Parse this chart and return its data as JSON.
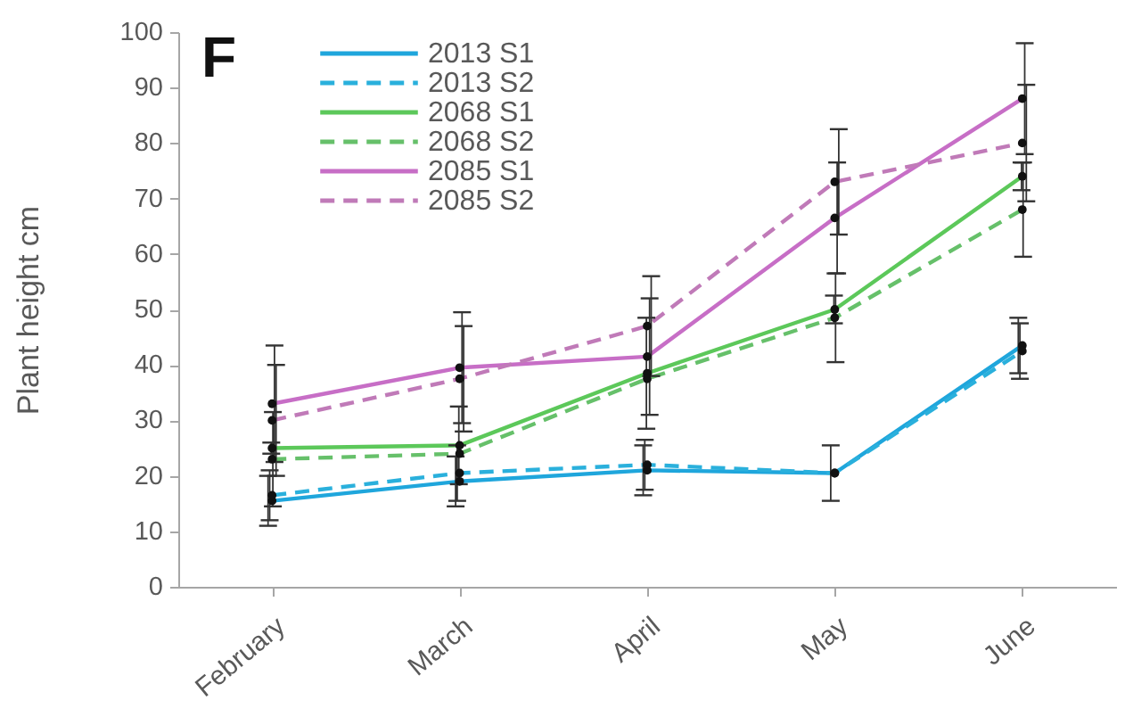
{
  "chart_data": {
    "type": "line",
    "title": "F",
    "ylabel": "Plant height cm",
    "categories": [
      "February",
      "March",
      "April",
      "May",
      "June"
    ],
    "ylim": [
      0,
      100
    ],
    "yticks": [
      0,
      10,
      20,
      30,
      40,
      50,
      60,
      70,
      80,
      90,
      100
    ],
    "legend": "top left",
    "marker": "circle",
    "series": [
      {
        "name": "2013 S1",
        "color": "#1fa6dc",
        "line_style": "solid",
        "values": [
          15.5,
          19,
          21,
          20.5,
          43.5
        ],
        "errors": [
          4.5,
          4.5,
          4.5,
          5,
          5
        ]
      },
      {
        "name": "2013 S2",
        "color": "#2ab0dc",
        "line_style": "dashed",
        "values": [
          16.5,
          20.5,
          22,
          20.5,
          42.5
        ],
        "errors": [
          4.5,
          5,
          4.5,
          null,
          5
        ]
      },
      {
        "name": "2068 S1",
        "color": "#5cc85a",
        "line_style": "solid",
        "values": [
          25,
          25.5,
          38.5,
          50,
          74
        ],
        "errors": [
          1,
          7,
          10,
          2.5,
          2.5
        ]
      },
      {
        "name": "2068 S2",
        "color": "#66c06a",
        "line_style": "dashed",
        "values": [
          23,
          24,
          37.5,
          48.5,
          68
        ],
        "errors": [
          8.5,
          null,
          null,
          8,
          8.5
        ]
      },
      {
        "name": "2085 S1",
        "color": "#c76ec6",
        "line_style": "solid",
        "values": [
          33,
          39.5,
          41.5,
          66.5,
          88
        ],
        "errors": [
          10.5,
          10,
          10.5,
          10,
          10
        ]
      },
      {
        "name": "2085 S2",
        "color": "#c07ab8",
        "line_style": "dashed",
        "values": [
          30,
          37.5,
          47,
          73,
          80
        ],
        "errors": [
          10,
          9.5,
          9,
          9.5,
          10.5
        ]
      }
    ]
  }
}
